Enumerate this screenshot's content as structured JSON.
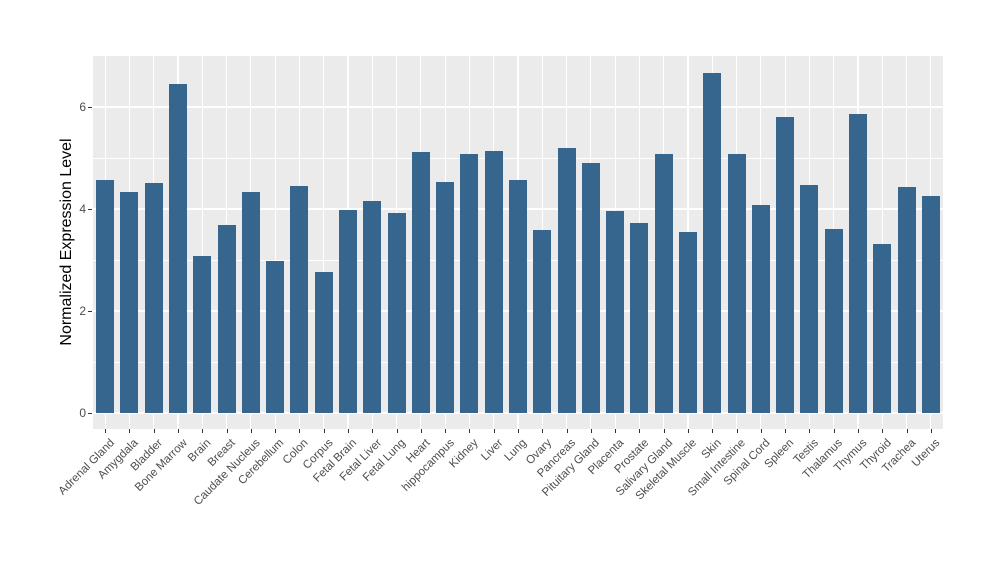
{
  "figure": {
    "background_color": "#FFFFFF",
    "panel_background_color": "#EBEBEB",
    "gridline_color": "#FFFFFF",
    "bar_color": "#36658D",
    "axis_text_color": "#4D4D4D",
    "axis_title_color": "#000000"
  },
  "chart_data": {
    "type": "bar",
    "title": "",
    "xlabel": "",
    "ylabel": "Normalized Expression Level",
    "ylim": [
      0,
      7
    ],
    "yticks": [
      0,
      2,
      4,
      6
    ],
    "grid": true,
    "legend": false,
    "x_label_rotation_deg": 45,
    "categories": [
      "Adrenal Gland",
      "Amygdala",
      "Bladder",
      "Bone Marrow",
      "Brain",
      "Breast",
      "Caudate Nucleus",
      "Cerebellum",
      "Colon",
      "Corpus",
      "Fetal Brain",
      "Fetal Liver",
      "Fetal Lung",
      "Heart",
      "hippocampus",
      "Kidney",
      "Liver",
      "Lung",
      "Ovary",
      "Pancreas",
      "Pituitary Gland",
      "Placenta",
      "Prostate",
      "Salivary Gland",
      "Skeletal Muscle",
      "Skin",
      "Small Intestine",
      "Spinal Cord",
      "Spleen",
      "Testis",
      "Thalamus",
      "Thymus",
      "Thyroid",
      "Trachea",
      "Uterus"
    ],
    "values": [
      4.57,
      4.34,
      4.51,
      6.45,
      3.07,
      3.68,
      4.33,
      2.98,
      4.45,
      2.76,
      3.99,
      4.16,
      3.92,
      5.12,
      4.52,
      5.07,
      5.14,
      4.56,
      3.58,
      5.2,
      4.9,
      3.97,
      3.72,
      5.07,
      3.54,
      6.66,
      5.07,
      4.07,
      5.81,
      4.47,
      3.61,
      5.86,
      3.32,
      4.44,
      4.26
    ]
  }
}
